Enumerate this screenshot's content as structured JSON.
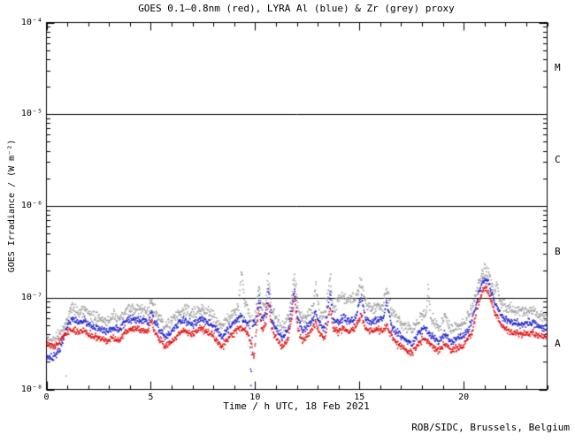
{
  "title": "GOES 0.1–0.8nm (red), LYRA Al (blue) & Zr (grey) proxy",
  "credit": "ROB/SIDC, Brussels, Belgium",
  "x_axis": {
    "label": "Time / h UTC, 18 Feb 2021",
    "range": [
      0,
      24
    ],
    "minor_step": 1,
    "major_ticks": [
      {
        "value": 0,
        "label": "0"
      },
      {
        "value": 5,
        "label": "5"
      },
      {
        "value": 10,
        "label": "10"
      },
      {
        "value": 15,
        "label": "15"
      },
      {
        "value": 20,
        "label": "20"
      }
    ]
  },
  "y_axis": {
    "label": "GOES Irradiance / (W m⁻²)",
    "scale": "log",
    "range": [
      1e-08,
      0.0001
    ],
    "ticks": [
      {
        "value": 0.0001,
        "label": "10⁻⁴"
      },
      {
        "value": 1e-05,
        "label": "10⁻⁵"
      },
      {
        "value": 1e-06,
        "label": "10⁻⁶"
      },
      {
        "value": 1e-07,
        "label": "10⁻⁷"
      },
      {
        "value": 1e-08,
        "label": "10⁻⁸"
      }
    ]
  },
  "flare_classes": [
    {
      "label": "M",
      "value": 3.16e-05
    },
    {
      "label": "C",
      "value": 3.16e-06
    },
    {
      "label": "B",
      "value": 3.16e-07
    },
    {
      "label": "A",
      "value": 3.16e-08
    }
  ],
  "threshold_lines": [
    1e-05,
    1e-06,
    1e-07
  ],
  "colors": {
    "background": "#ffffff",
    "axis": "#000000",
    "goes_red": "#e01010",
    "lyra_al_blue": "#2020cc",
    "lyra_zr_grey": "#a0a0a0"
  },
  "chart_data": {
    "type": "scatter",
    "x_unit": "hour UTC",
    "y_unit": "W m⁻²",
    "grid": false,
    "legend": "encoded in title",
    "series": [
      {
        "name": "LYRA Zr proxy",
        "color_key": "lyra_zr_grey",
        "noise": 1.6,
        "extra_points": [
          [
            0.95,
            1.4e-08
          ]
        ],
        "anchors": [
          [
            0.0,
            3.6e-08
          ],
          [
            0.4,
            3.4e-08
          ],
          [
            0.8,
            4.6e-08
          ],
          [
            1.2,
            7.6e-08
          ],
          [
            1.5,
            7e-08
          ],
          [
            1.8,
            7.3e-08
          ],
          [
            2.1,
            6.3e-08
          ],
          [
            2.5,
            6e-08
          ],
          [
            2.9,
            5.5e-08
          ],
          [
            3.2,
            6.1e-08
          ],
          [
            3.5,
            5.8e-08
          ],
          [
            3.8,
            7.1e-08
          ],
          [
            4.2,
            7.6e-08
          ],
          [
            4.6,
            7.3e-08
          ],
          [
            4.9,
            7.1e-08
          ],
          [
            5.05,
            9.5e-08
          ],
          [
            5.15,
            7.4e-08
          ],
          [
            5.4,
            6e-08
          ],
          [
            5.7,
            4.8e-08
          ],
          [
            6.0,
            5.5e-08
          ],
          [
            6.3,
            6.6e-08
          ],
          [
            6.6,
            7.3e-08
          ],
          [
            7.0,
            6.6e-08
          ],
          [
            7.4,
            7.6e-08
          ],
          [
            7.7,
            7.1e-08
          ],
          [
            8.0,
            6.3e-08
          ],
          [
            8.4,
            4.8e-08
          ],
          [
            8.7,
            5.8e-08
          ],
          [
            9.0,
            7e-08
          ],
          [
            9.2,
            8e-08
          ],
          [
            9.35,
            2e-07
          ],
          [
            9.5,
            9e-08
          ],
          [
            9.8,
            6e-08
          ],
          [
            9.95,
            5.2e-08
          ],
          [
            10.05,
            7e-08
          ],
          [
            10.2,
            1.5e-07
          ],
          [
            10.3,
            7.7e-08
          ],
          [
            10.5,
            8.3e-08
          ],
          [
            10.65,
            1.75e-07
          ],
          [
            10.8,
            7.5e-08
          ],
          [
            11.0,
            6e-08
          ],
          [
            11.3,
            4.8e-08
          ],
          [
            11.6,
            6e-08
          ],
          [
            11.9,
            1.8e-07
          ],
          [
            12.05,
            7.5e-08
          ],
          [
            12.3,
            5.7e-08
          ],
          [
            12.55,
            6.5e-08
          ],
          [
            12.75,
            7.5e-08
          ],
          [
            12.9,
            1.4e-07
          ],
          [
            13.1,
            6.6e-08
          ],
          [
            13.35,
            6e-08
          ],
          [
            13.6,
            1.7e-07
          ],
          [
            13.75,
            7.5e-08
          ],
          [
            14.0,
            9.5e-08
          ],
          [
            14.25,
            1.05e-07
          ],
          [
            14.5,
            9.5e-08
          ],
          [
            14.8,
            1e-07
          ],
          [
            15.1,
            1.5e-07
          ],
          [
            15.3,
            8.5e-08
          ],
          [
            15.6,
            7.5e-08
          ],
          [
            15.9,
            8.5e-08
          ],
          [
            16.1,
            7.5e-08
          ],
          [
            16.3,
            1.3e-07
          ],
          [
            16.55,
            7e-08
          ],
          [
            16.85,
            5.8e-08
          ],
          [
            17.2,
            4.8e-08
          ],
          [
            17.55,
            4.4e-08
          ],
          [
            17.85,
            5.7e-08
          ],
          [
            18.1,
            6.5e-08
          ],
          [
            18.22,
            6.8e-08
          ],
          [
            18.3,
            1.35e-07
          ],
          [
            18.4,
            6.2e-08
          ],
          [
            18.8,
            4.6e-08
          ],
          [
            19.1,
            6.5e-08
          ],
          [
            19.4,
            4.4e-08
          ],
          [
            19.7,
            4.8e-08
          ],
          [
            20.0,
            5.3e-08
          ],
          [
            20.4,
            7.5e-08
          ],
          [
            20.7,
            1.4e-07
          ],
          [
            21.0,
            2.05e-07
          ],
          [
            21.15,
            1.9e-07
          ],
          [
            21.45,
            1.2e-07
          ],
          [
            21.52,
            1.1e-07
          ],
          [
            21.6,
            1.6e-07
          ],
          [
            21.68,
            1e-07
          ],
          [
            21.9,
            8.5e-08
          ],
          [
            22.1,
            7.6e-08
          ],
          [
            22.4,
            7.2e-08
          ],
          [
            22.8,
            7e-08
          ],
          [
            23.2,
            7.2e-08
          ],
          [
            23.6,
            6.5e-08
          ],
          [
            24.0,
            6.2e-08
          ]
        ]
      },
      {
        "name": "LYRA Al proxy",
        "color_key": "lyra_al_blue",
        "noise": 1.0,
        "extra_points": [],
        "anchors": [
          [
            0.0,
            2.3e-08
          ],
          [
            0.3,
            2.2e-08
          ],
          [
            0.6,
            2.6e-08
          ],
          [
            0.9,
            4.2e-08
          ],
          [
            1.2,
            5.9e-08
          ],
          [
            1.5,
            5.4e-08
          ],
          [
            1.8,
            5.6e-08
          ],
          [
            2.1,
            4.9e-08
          ],
          [
            2.5,
            4.6e-08
          ],
          [
            2.9,
            4.2e-08
          ],
          [
            3.2,
            4.7e-08
          ],
          [
            3.5,
            4.5e-08
          ],
          [
            3.8,
            5.5e-08
          ],
          [
            4.2,
            5.9e-08
          ],
          [
            4.6,
            5.6e-08
          ],
          [
            4.9,
            5.5e-08
          ],
          [
            5.05,
            7.5e-08
          ],
          [
            5.15,
            5.7e-08
          ],
          [
            5.4,
            4.6e-08
          ],
          [
            5.7,
            3.7e-08
          ],
          [
            6.0,
            4.2e-08
          ],
          [
            6.3,
            5.1e-08
          ],
          [
            6.6,
            5.6e-08
          ],
          [
            7.0,
            5.1e-08
          ],
          [
            7.4,
            5.9e-08
          ],
          [
            7.7,
            5.5e-08
          ],
          [
            8.0,
            4.9e-08
          ],
          [
            8.4,
            3.7e-08
          ],
          [
            8.7,
            4.5e-08
          ],
          [
            9.0,
            5.4e-08
          ],
          [
            9.3,
            6.2e-08
          ],
          [
            9.6,
            5.4e-08
          ],
          [
            9.74,
            5.6e-08
          ],
          [
            9.8,
            1.05e-08
          ],
          [
            9.88,
            5.2e-08
          ],
          [
            10.05,
            5.4e-08
          ],
          [
            10.2,
            1e-07
          ],
          [
            10.3,
            5.9e-08
          ],
          [
            10.5,
            6.4e-08
          ],
          [
            10.65,
            1.2e-07
          ],
          [
            10.8,
            5.8e-08
          ],
          [
            11.0,
            4.6e-08
          ],
          [
            11.3,
            3.7e-08
          ],
          [
            11.6,
            4.6e-08
          ],
          [
            11.9,
            1.25e-07
          ],
          [
            12.05,
            5.8e-08
          ],
          [
            12.3,
            4.4e-08
          ],
          [
            12.55,
            5e-08
          ],
          [
            12.75,
            5.8e-08
          ],
          [
            12.9,
            7.1e-08
          ],
          [
            13.1,
            5.1e-08
          ],
          [
            13.35,
            4.6e-08
          ],
          [
            13.6,
            1.15e-07
          ],
          [
            13.75,
            5.8e-08
          ],
          [
            14.0,
            5.4e-08
          ],
          [
            14.25,
            6e-08
          ],
          [
            14.5,
            5.5e-08
          ],
          [
            14.8,
            5.9e-08
          ],
          [
            15.1,
            1.05e-07
          ],
          [
            15.3,
            5.9e-08
          ],
          [
            15.6,
            5.4e-08
          ],
          [
            15.9,
            5.9e-08
          ],
          [
            16.1,
            5.4e-08
          ],
          [
            16.3,
            8.8e-08
          ],
          [
            16.55,
            4.9e-08
          ],
          [
            16.85,
            4e-08
          ],
          [
            17.2,
            3.5e-08
          ],
          [
            17.55,
            3.2e-08
          ],
          [
            17.85,
            4.1e-08
          ],
          [
            18.1,
            4.8e-08
          ],
          [
            18.45,
            3.9e-08
          ],
          [
            18.8,
            3.3e-08
          ],
          [
            19.1,
            4.1e-08
          ],
          [
            19.4,
            3.3e-08
          ],
          [
            19.7,
            3.6e-08
          ],
          [
            20.0,
            3.9e-08
          ],
          [
            20.4,
            5.4e-08
          ],
          [
            20.7,
            1.1e-07
          ],
          [
            21.0,
            1.65e-07
          ],
          [
            21.15,
            1.5e-07
          ],
          [
            21.5,
            8.7e-08
          ],
          [
            21.8,
            6.4e-08
          ],
          [
            22.1,
            5.6e-08
          ],
          [
            22.4,
            5.4e-08
          ],
          [
            22.8,
            5.1e-08
          ],
          [
            23.2,
            5.4e-08
          ],
          [
            23.6,
            4.9e-08
          ],
          [
            24.0,
            4.7e-08
          ]
        ]
      },
      {
        "name": "GOES 0.1-0.8nm",
        "color_key": "goes_red",
        "noise": 0.9,
        "extra_points": [],
        "anchors": [
          [
            0.0,
            3.2e-08
          ],
          [
            0.4,
            2.9e-08
          ],
          [
            0.8,
            3.8e-08
          ],
          [
            1.2,
            4.6e-08
          ],
          [
            1.5,
            4.2e-08
          ],
          [
            1.8,
            4.4e-08
          ],
          [
            2.1,
            3.8e-08
          ],
          [
            2.5,
            3.6e-08
          ],
          [
            2.9,
            3.3e-08
          ],
          [
            3.2,
            3.7e-08
          ],
          [
            3.5,
            3.5e-08
          ],
          [
            3.8,
            4.3e-08
          ],
          [
            4.2,
            4.6e-08
          ],
          [
            4.6,
            4.4e-08
          ],
          [
            4.9,
            4.3e-08
          ],
          [
            5.05,
            6e-08
          ],
          [
            5.15,
            4.5e-08
          ],
          [
            5.4,
            3.6e-08
          ],
          [
            5.7,
            2.9e-08
          ],
          [
            6.0,
            3.3e-08
          ],
          [
            6.3,
            4e-08
          ],
          [
            6.6,
            4.4e-08
          ],
          [
            7.0,
            4e-08
          ],
          [
            7.4,
            4.6e-08
          ],
          [
            7.7,
            4.3e-08
          ],
          [
            8.0,
            3.8e-08
          ],
          [
            8.4,
            2.9e-08
          ],
          [
            8.7,
            3.5e-08
          ],
          [
            9.0,
            4.2e-08
          ],
          [
            9.3,
            4.8e-08
          ],
          [
            9.6,
            4.2e-08
          ],
          [
            9.8,
            3.3e-08
          ],
          [
            9.95,
            2.1e-08
          ],
          [
            10.05,
            4.2e-08
          ],
          [
            10.2,
            7.5e-08
          ],
          [
            10.3,
            4.6e-08
          ],
          [
            10.5,
            5e-08
          ],
          [
            10.65,
            9e-08
          ],
          [
            10.8,
            4.5e-08
          ],
          [
            11.0,
            3.6e-08
          ],
          [
            11.3,
            2.9e-08
          ],
          [
            11.6,
            3.6e-08
          ],
          [
            11.9,
            1e-07
          ],
          [
            12.05,
            4.5e-08
          ],
          [
            12.3,
            3.4e-08
          ],
          [
            12.55,
            3.9e-08
          ],
          [
            12.75,
            4.5e-08
          ],
          [
            12.9,
            5.5e-08
          ],
          [
            13.1,
            4e-08
          ],
          [
            13.35,
            3.6e-08
          ],
          [
            13.6,
            8e-08
          ],
          [
            13.75,
            4.5e-08
          ],
          [
            14.0,
            4.2e-08
          ],
          [
            14.25,
            4.7e-08
          ],
          [
            14.5,
            4.3e-08
          ],
          [
            14.8,
            4.6e-08
          ],
          [
            15.1,
            6.5e-08
          ],
          [
            15.3,
            4.6e-08
          ],
          [
            15.6,
            4.2e-08
          ],
          [
            15.9,
            4.6e-08
          ],
          [
            16.1,
            4.2e-08
          ],
          [
            16.3,
            5e-08
          ],
          [
            16.55,
            3.8e-08
          ],
          [
            16.85,
            3.1e-08
          ],
          [
            17.2,
            2.7e-08
          ],
          [
            17.55,
            2.5e-08
          ],
          [
            17.85,
            3.2e-08
          ],
          [
            18.1,
            3.7e-08
          ],
          [
            18.45,
            3e-08
          ],
          [
            18.8,
            2.6e-08
          ],
          [
            19.1,
            3.2e-08
          ],
          [
            19.4,
            2.6e-08
          ],
          [
            19.7,
            2.8e-08
          ],
          [
            20.0,
            3e-08
          ],
          [
            20.4,
            4.2e-08
          ],
          [
            20.7,
            8.5e-08
          ],
          [
            21.0,
            1.3e-07
          ],
          [
            21.15,
            1.2e-07
          ],
          [
            21.5,
            6.8e-08
          ],
          [
            21.8,
            5e-08
          ],
          [
            22.1,
            4.4e-08
          ],
          [
            22.4,
            4.2e-08
          ],
          [
            22.8,
            4e-08
          ],
          [
            23.2,
            4.2e-08
          ],
          [
            23.6,
            3.8e-08
          ],
          [
            24.0,
            3.6e-08
          ]
        ]
      }
    ]
  }
}
